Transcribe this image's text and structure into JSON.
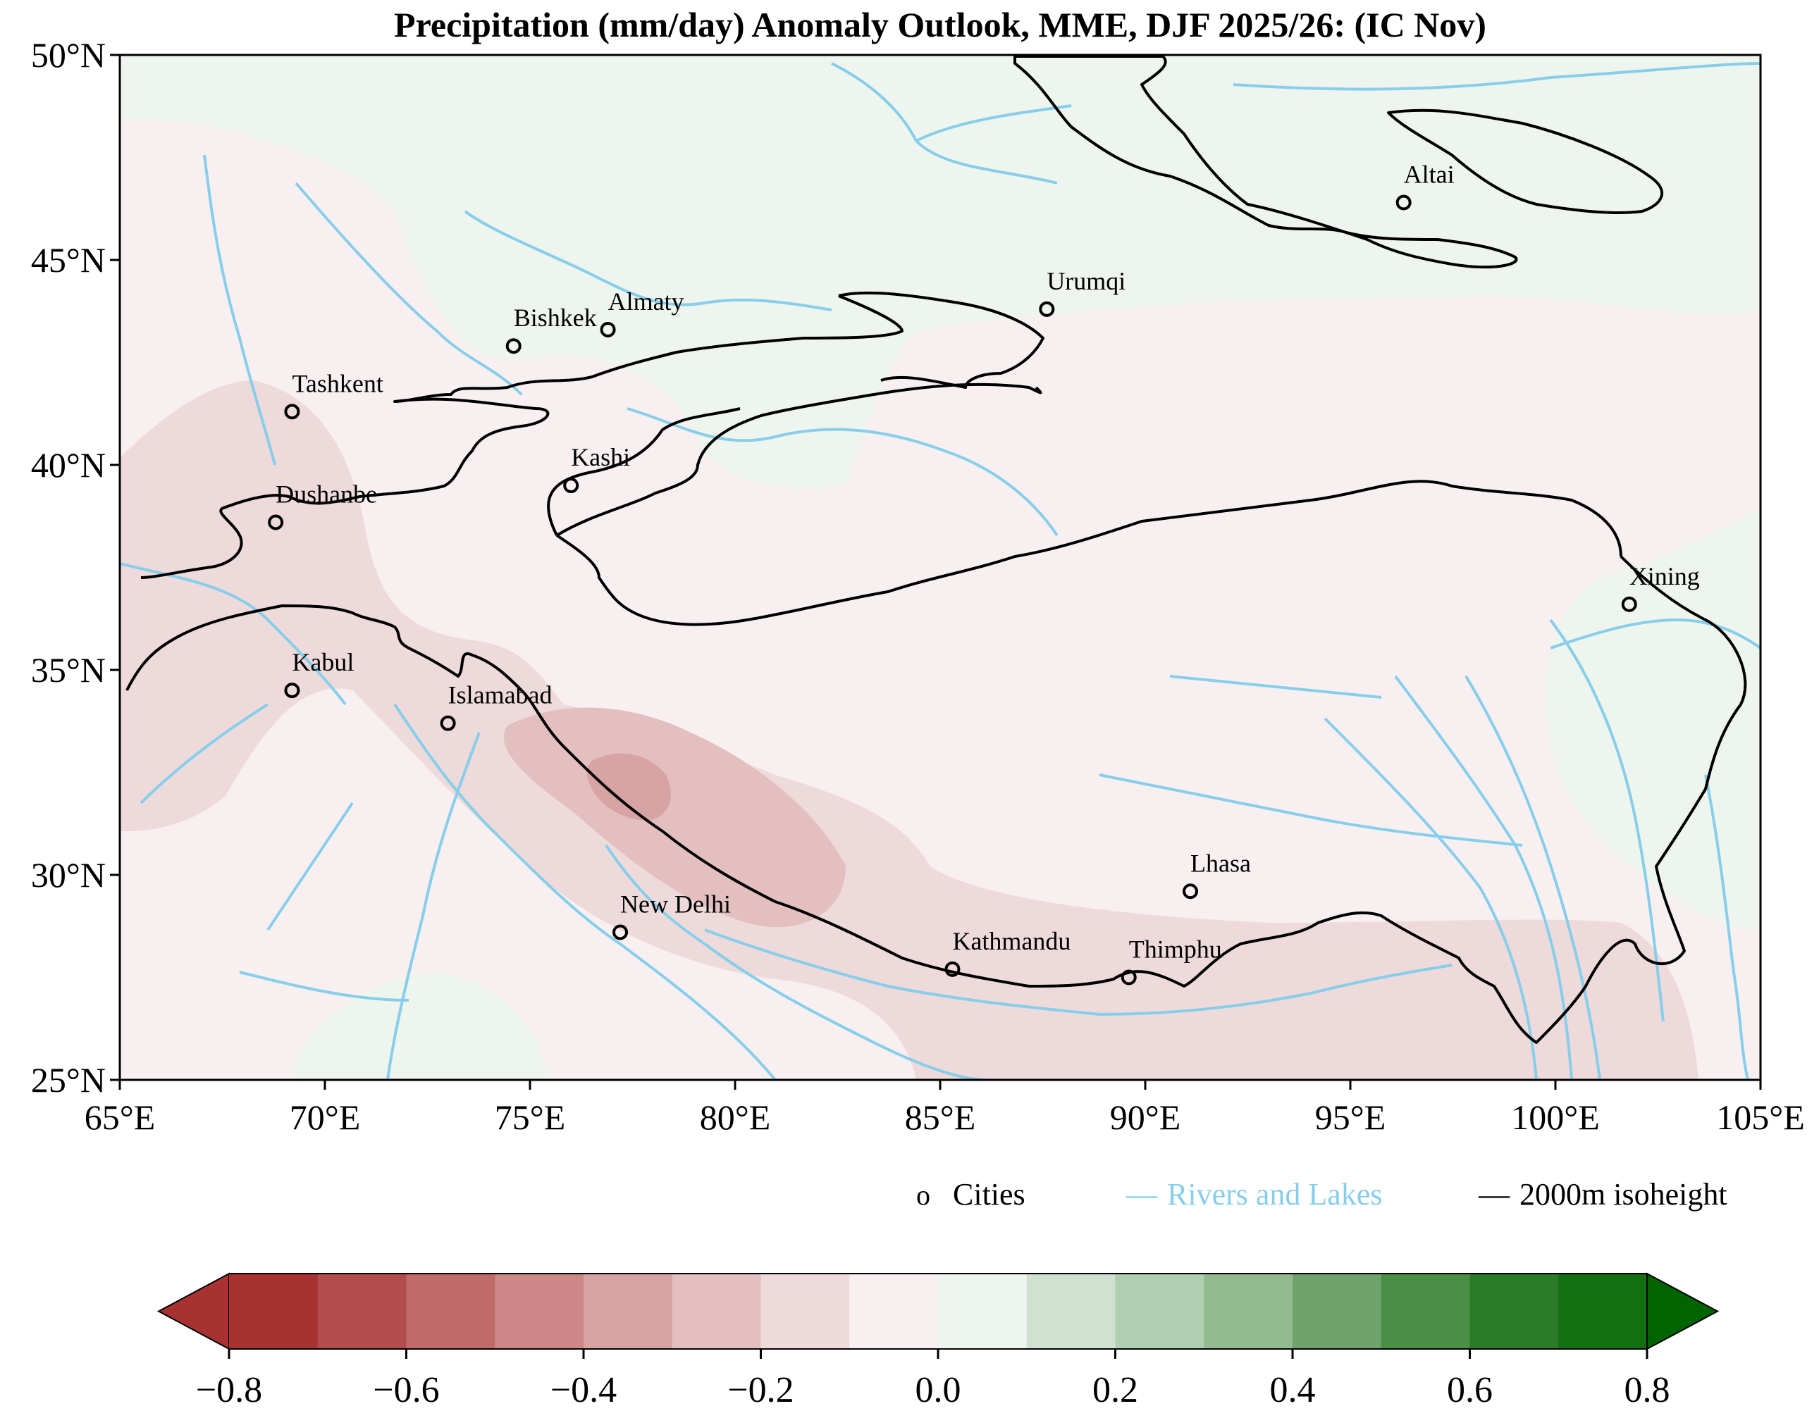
{
  "title": "Precipitation (mm/day) Anomaly Outlook, MME, DJF  2025/26:  (IC Nov)",
  "axes": {
    "lon_labels": [
      "65°E",
      "70°E",
      "75°E",
      "80°E",
      "85°E",
      "90°E",
      "95°E",
      "100°E",
      "105°E"
    ],
    "lat_labels": [
      "50°N",
      "45°N",
      "40°N",
      "35°N",
      "30°N",
      "25°N"
    ],
    "lon_range": [
      65,
      105
    ],
    "lat_range": [
      25,
      50
    ]
  },
  "cities": [
    {
      "name": "Altai",
      "lon": 96.3,
      "lat": 46.4
    },
    {
      "name": "Urumqi",
      "lon": 87.6,
      "lat": 43.8
    },
    {
      "name": "Almaty",
      "lon": 76.9,
      "lat": 43.3
    },
    {
      "name": "Bishkek",
      "lon": 74.6,
      "lat": 42.9
    },
    {
      "name": "Tashkent",
      "lon": 69.2,
      "lat": 41.3
    },
    {
      "name": "Kashi",
      "lon": 76.0,
      "lat": 39.5
    },
    {
      "name": "Dushanbe",
      "lon": 68.8,
      "lat": 38.6
    },
    {
      "name": "Xining",
      "lon": 101.8,
      "lat": 36.6
    },
    {
      "name": "Kabul",
      "lon": 69.2,
      "lat": 34.5
    },
    {
      "name": "Islamabad",
      "lon": 73.0,
      "lat": 33.7
    },
    {
      "name": "Lhasa",
      "lon": 91.1,
      "lat": 29.6
    },
    {
      "name": "New Delhi",
      "lon": 77.2,
      "lat": 28.6
    },
    {
      "name": "Kathmandu",
      "lon": 85.3,
      "lat": 27.7
    },
    {
      "name": "Thimphu",
      "lon": 89.6,
      "lat": 27.5
    }
  ],
  "legend": {
    "cities_marker": "o",
    "cities_label": "Cities",
    "rivers_label": "Rivers and Lakes",
    "isoheight_label": "2000m isoheight",
    "rivers_color": "#87ceeb",
    "isoheight_color": "#000000"
  },
  "colorbar": {
    "ticks": [
      "−0.8",
      "−0.6",
      "−0.4",
      "−0.2",
      "0.0",
      "0.2",
      "0.4",
      "0.6",
      "0.8"
    ],
    "colors": [
      "#a83232",
      "#b34d4d",
      "#c06a6a",
      "#cd8787",
      "#d8a3a3",
      "#e3bfbf",
      "#eedada",
      "#f8f0f0",
      "#eef4ee",
      "#cfe1cf",
      "#b0cfb0",
      "#93bb8f",
      "#6fa36b",
      "#4b8f47",
      "#2b7b28",
      "#127010"
    ],
    "min_arrow_color": "#a83232",
    "max_arrow_color": "#006400"
  }
}
